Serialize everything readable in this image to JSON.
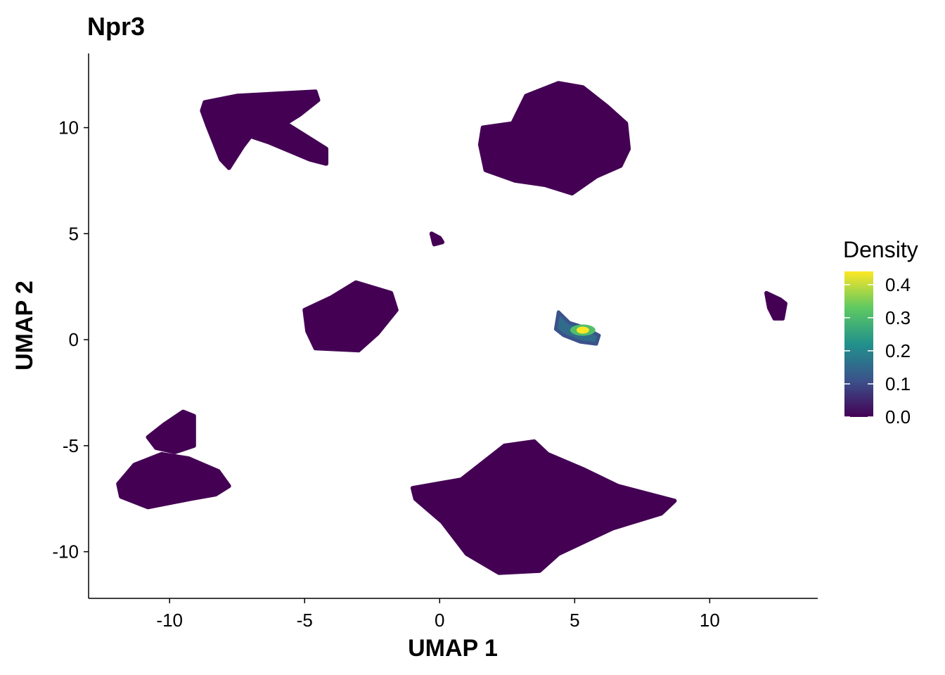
{
  "chart_data": {
    "type": "scatter",
    "title": "Npr3",
    "xlabel": "UMAP 1",
    "ylabel": "UMAP 2",
    "xlim": [
      -13,
      14
    ],
    "ylim": [
      -12.2,
      13.5
    ],
    "x_ticks": [
      -10,
      -5,
      0,
      5,
      10
    ],
    "x_tick_labels": [
      "-10",
      "-5",
      "0",
      "5",
      "10"
    ],
    "y_ticks": [
      -10,
      -5,
      0,
      5,
      10
    ],
    "y_tick_labels": [
      "-10",
      "-5",
      "0",
      "5",
      "10"
    ],
    "grid": false,
    "legend": {
      "title": "Density",
      "position": "right",
      "min": 0.0,
      "max": 0.44,
      "ticks": [
        0.0,
        0.1,
        0.2,
        0.3,
        0.4
      ],
      "tick_labels": [
        "0.0",
        "0.1",
        "0.2",
        "0.3",
        "0.4"
      ]
    },
    "colormap": [
      "#440154",
      "#3b528b",
      "#21918c",
      "#5ec962",
      "#fde725"
    ],
    "clusters": [
      {
        "id": "cluster-top-left-arrow",
        "polygon": [
          [
            -8.7,
            11.2
          ],
          [
            -7.5,
            11.5
          ],
          [
            -4.6,
            11.7
          ],
          [
            -4.5,
            11.3
          ],
          [
            -5.2,
            10.6
          ],
          [
            -5.7,
            10.2
          ],
          [
            -4.2,
            9.0
          ],
          [
            -4.2,
            8.3
          ],
          [
            -4.8,
            8.5
          ],
          [
            -6.3,
            9.3
          ],
          [
            -7.0,
            9.6
          ],
          [
            -7.3,
            9.1
          ],
          [
            -7.8,
            8.1
          ],
          [
            -8.1,
            8.5
          ],
          [
            -8.6,
            10.1
          ],
          [
            -8.8,
            10.8
          ]
        ],
        "density": 0
      },
      {
        "id": "cluster-top-right",
        "polygon": [
          [
            2.7,
            10.2
          ],
          [
            3.2,
            11.5
          ],
          [
            4.4,
            12.1
          ],
          [
            5.3,
            11.9
          ],
          [
            6.2,
            11.0
          ],
          [
            6.9,
            10.2
          ],
          [
            7.0,
            9.0
          ],
          [
            6.7,
            8.2
          ],
          [
            5.8,
            7.7
          ],
          [
            4.9,
            6.9
          ],
          [
            3.9,
            7.3
          ],
          [
            2.8,
            7.5
          ],
          [
            1.7,
            8.0
          ],
          [
            1.5,
            9.2
          ],
          [
            1.6,
            10.0
          ]
        ],
        "density": 0
      },
      {
        "id": "cluster-center-left",
        "polygon": [
          [
            -5.0,
            1.4
          ],
          [
            -4.0,
            2.0
          ],
          [
            -3.1,
            2.7
          ],
          [
            -1.8,
            2.2
          ],
          [
            -1.6,
            1.4
          ],
          [
            -2.3,
            0.3
          ],
          [
            -3.0,
            -0.5
          ],
          [
            -4.6,
            -0.4
          ],
          [
            -4.9,
            0.4
          ]
        ],
        "density": 0
      },
      {
        "id": "cluster-small-center",
        "polygon": [
          [
            -0.3,
            5.0
          ],
          [
            0.0,
            4.8
          ],
          [
            0.1,
            4.6
          ],
          [
            -0.2,
            4.5
          ]
        ],
        "density": 0
      },
      {
        "id": "cluster-right-small",
        "polygon": [
          [
            12.1,
            2.2
          ],
          [
            12.6,
            1.9
          ],
          [
            12.8,
            1.7
          ],
          [
            12.7,
            1.0
          ],
          [
            12.4,
            1.0
          ],
          [
            12.2,
            1.5
          ]
        ],
        "density": 0
      },
      {
        "id": "cluster-bottom-left",
        "polygon": [
          [
            -11.9,
            -6.8
          ],
          [
            -11.3,
            -5.9
          ],
          [
            -10.3,
            -5.4
          ],
          [
            -9.3,
            -5.6
          ],
          [
            -8.2,
            -6.2
          ],
          [
            -7.8,
            -6.9
          ],
          [
            -8.3,
            -7.3
          ],
          [
            -9.2,
            -7.5
          ],
          [
            -10.8,
            -7.9
          ],
          [
            -11.8,
            -7.4
          ]
        ],
        "density": 0
      },
      {
        "id": "cluster-bottom-left-top",
        "polygon": [
          [
            -10.8,
            -4.6
          ],
          [
            -10.2,
            -4.0
          ],
          [
            -9.5,
            -3.4
          ],
          [
            -9.1,
            -3.6
          ],
          [
            -9.1,
            -5.0
          ],
          [
            -9.8,
            -5.3
          ],
          [
            -10.5,
            -5.1
          ]
        ],
        "density": 0
      },
      {
        "id": "cluster-bottom-center",
        "polygon": [
          [
            -1.0,
            -7.0
          ],
          [
            0.8,
            -6.6
          ],
          [
            2.4,
            -5.0
          ],
          [
            3.5,
            -4.8
          ],
          [
            4.0,
            -5.4
          ],
          [
            5.3,
            -6.1
          ],
          [
            6.6,
            -6.9
          ],
          [
            8.7,
            -7.6
          ],
          [
            8.2,
            -8.2
          ],
          [
            6.4,
            -8.9
          ],
          [
            4.4,
            -10.1
          ],
          [
            3.7,
            -10.9
          ],
          [
            2.2,
            -11.0
          ],
          [
            1.0,
            -10.1
          ],
          [
            0.1,
            -8.6
          ],
          [
            -0.9,
            -7.5
          ]
        ],
        "density": 0
      }
    ],
    "density_hotspot": {
      "polygon": [
        [
          4.4,
          1.3
        ],
        [
          4.8,
          0.8
        ],
        [
          5.3,
          0.6
        ],
        [
          5.9,
          0.2
        ],
        [
          5.8,
          -0.2
        ],
        [
          5.2,
          -0.1
        ],
        [
          4.6,
          0.2
        ],
        [
          4.3,
          0.5
        ]
      ],
      "peak_density": 0.44,
      "peak": [
        5.3,
        0.45
      ]
    }
  }
}
